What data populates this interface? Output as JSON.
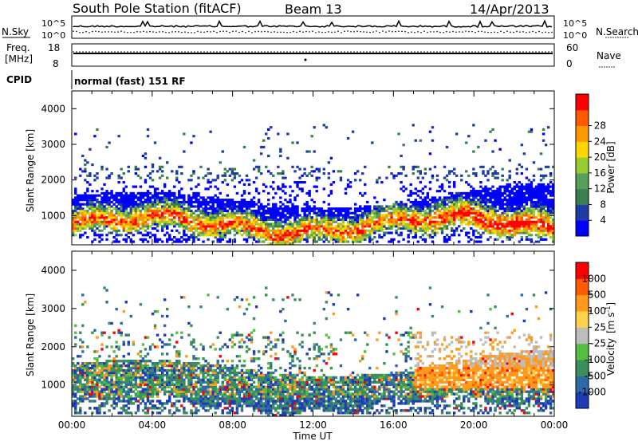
{
  "header": {
    "title": "South Pole Station (fitACF)",
    "beam": "Beam 13",
    "date": "14/Apr/2013"
  },
  "top_panels": {
    "nsky_label": "N.Sky",
    "nsearch_label": "N.Search",
    "noise_ticks": [
      "10^5",
      "10^0"
    ],
    "freq_label_1": "Freq.",
    "freq_label_2": "[MHz]",
    "freq_ticks": [
      "18",
      "8"
    ],
    "nave_label": "Nave",
    "nave_ticks": [
      "60",
      "0"
    ],
    "cpid_label": "CPID",
    "cpid_text": "normal (fast) 151 RF"
  },
  "chart_data": [
    {
      "type": "heatmap",
      "name": "power",
      "ylabel": "Slant Range [km]",
      "yticks": [
        1000,
        2000,
        3000,
        4000
      ],
      "ylim": [
        180,
        4500
      ],
      "xlim": [
        0,
        24
      ],
      "colorbar": {
        "label": "Power [dB]",
        "ticks": [
          4,
          8,
          12,
          16,
          20,
          24,
          28
        ],
        "colors": [
          "#0000ff",
          "#1e3ca8",
          "#3c7f4f",
          "#55a05a",
          "#9acd32",
          "#ffd700",
          "#ff9900",
          "#ff5a00",
          "#ff0000"
        ]
      }
    },
    {
      "type": "heatmap",
      "name": "velocity",
      "ylabel": "Slant Range [km]",
      "yticks": [
        1000,
        2000,
        3000,
        4000
      ],
      "ylim": [
        180,
        4500
      ],
      "xlim": [
        0,
        24
      ],
      "xlabel": "Time UT",
      "xticks": [
        "00:00",
        "04:00",
        "08:00",
        "12:00",
        "16:00",
        "20:00",
        "00:00"
      ],
      "colorbar": {
        "label_main": "Velocity",
        "label_unit": "[m s",
        "label_exp": "-1",
        "ticks": [
          "1000",
          "500",
          "100",
          "25",
          "-25",
          "-100",
          "-500",
          "-1000"
        ],
        "colors": [
          "#1e3cb4",
          "#2f6aa8",
          "#3c8f5a",
          "#55c040",
          "#bdbdbd",
          "#ffd24a",
          "#ff9a1e",
          "#ff5a00",
          "#ff0000"
        ]
      }
    }
  ]
}
